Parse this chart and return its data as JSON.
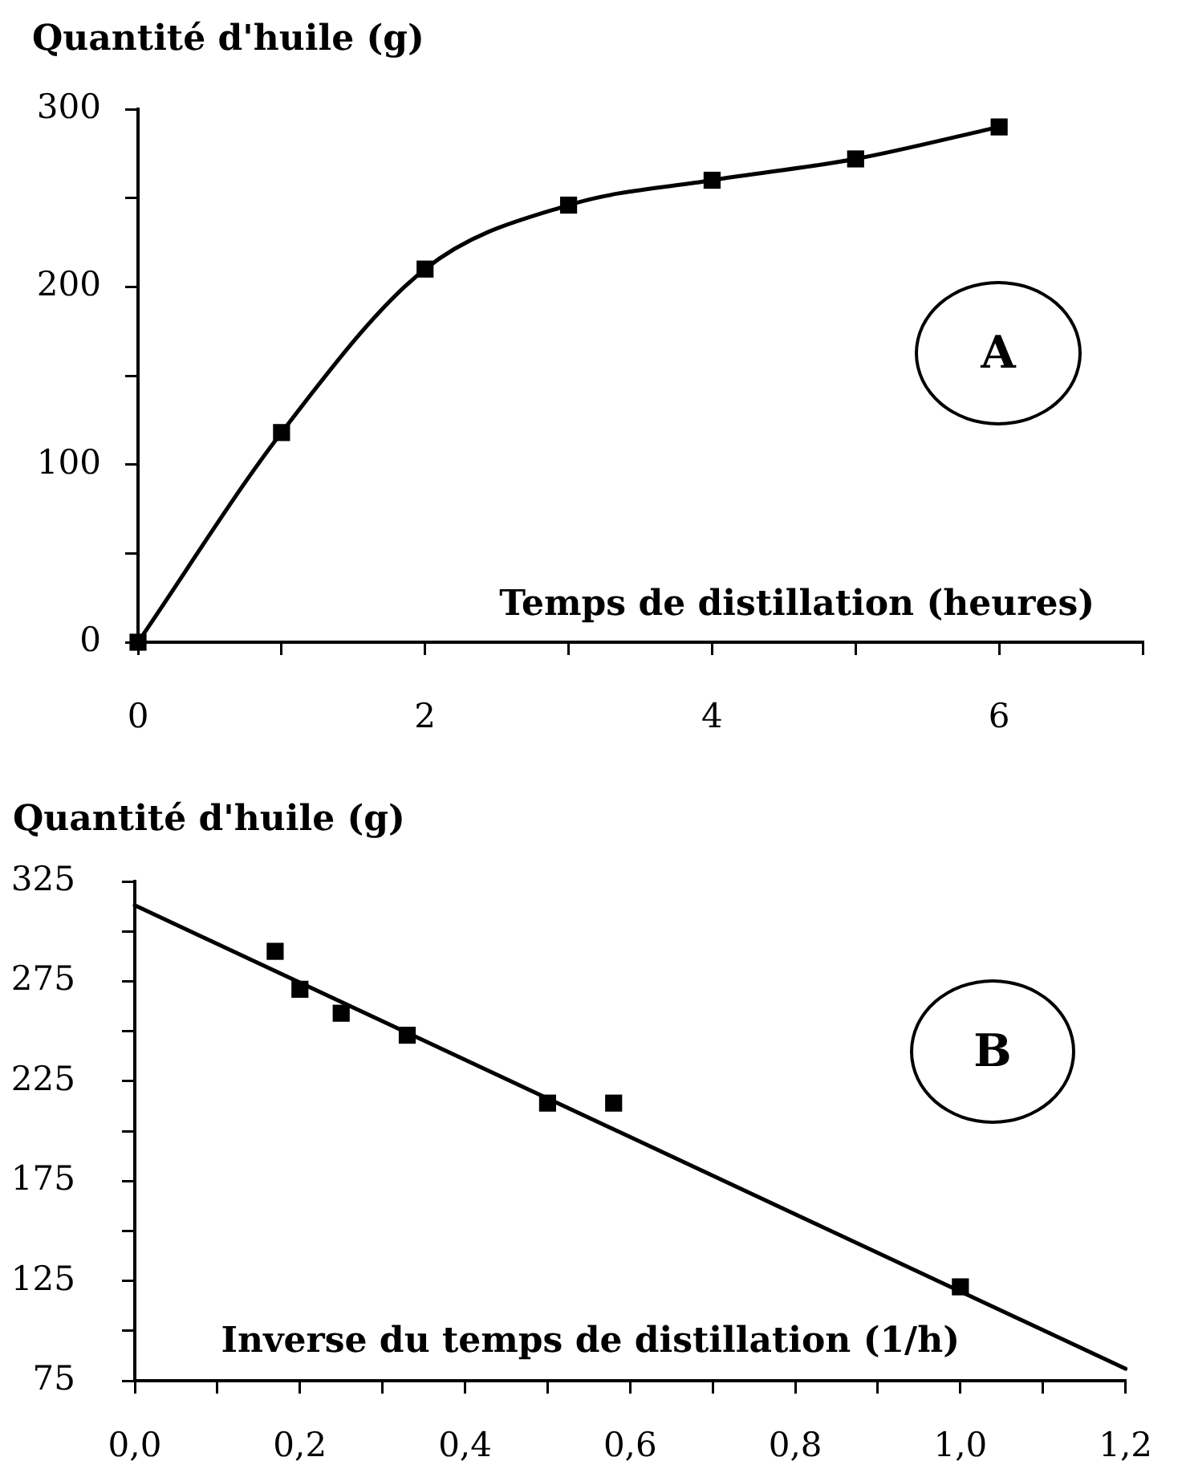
{
  "chart_data": [
    {
      "type": "line",
      "ylabel": "Quantité d'huile (g)",
      "xlabel": "Temps de distillation (heures)",
      "x": [
        0,
        1,
        2,
        3,
        4,
        5,
        6
      ],
      "values": [
        0,
        118,
        210,
        246,
        260,
        272,
        290
      ],
      "color": "#000000",
      "marker": "square",
      "line_style": "solid",
      "xlim": [
        0,
        7
      ],
      "ylim": [
        0,
        300
      ],
      "xticks": [
        0,
        {
          "value": 1,
          "label": null
        },
        2,
        {
          "value": 3,
          "label": null
        },
        4,
        {
          "value": 5,
          "label": null
        },
        6,
        {
          "value": 7,
          "label": null
        }
      ],
      "yticks": [
        0,
        {
          "value": 50,
          "label": null
        },
        100,
        {
          "value": 150,
          "label": null
        },
        200,
        {
          "value": 250,
          "label": null
        },
        300
      ],
      "annotations": [
        "A"
      ]
    },
    {
      "type": "scatter",
      "ylabel": "Quantité d'huile (g)",
      "xlabel": "Inverse du temps de distillation (1/h)",
      "series": [
        {
          "color": "#000000",
          "x": [
            0.17,
            0.2,
            0.25,
            0.33,
            0.5,
            0.58,
            1.0
          ],
          "values": [
            290,
            271,
            259,
            248,
            214,
            214,
            122
          ]
        },
        {
          "type": "line",
          "color": "#000000",
          "marker": "none",
          "line_style": "solid",
          "x": [
            0,
            1.2
          ],
          "values": [
            313,
            81
          ]
        }
      ],
      "marker": "square",
      "xlim": [
        0,
        1.2
      ],
      "ylim": [
        75,
        325
      ],
      "xticks": [
        {
          "value": 0,
          "label": "0,0"
        },
        {
          "value": 0.1,
          "label": null
        },
        {
          "value": 0.2,
          "label": "0,2"
        },
        {
          "value": 0.3,
          "label": null
        },
        {
          "value": 0.4,
          "label": "0,4"
        },
        {
          "value": 0.5,
          "label": null
        },
        {
          "value": 0.6,
          "label": "0,6"
        },
        {
          "value": 0.7,
          "label": null
        },
        {
          "value": 0.8,
          "label": "0,8"
        },
        {
          "value": 0.9,
          "label": null
        },
        {
          "value": 1.0,
          "label": "1,0"
        },
        {
          "value": 1.1,
          "label": null
        },
        {
          "value": 1.2,
          "label": "1,2"
        }
      ],
      "yticks": [
        75,
        {
          "value": 100,
          "label": null
        },
        125,
        {
          "value": 150,
          "label": null
        },
        175,
        {
          "value": 200,
          "label": null
        },
        225,
        {
          "value": 250,
          "label": null
        },
        275,
        {
          "value": 300,
          "label": null
        },
        325
      ],
      "annotations": [
        "B"
      ]
    }
  ]
}
